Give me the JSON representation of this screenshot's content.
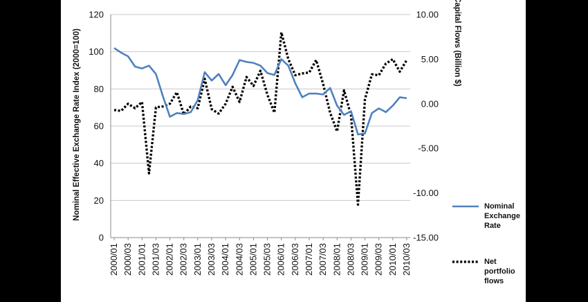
{
  "chart_data": {
    "type": "line",
    "title": "",
    "y_left_label": "Nominal Effective Exchange Rate Index  (2000=100)",
    "y_right_label": "Capital Flows (Billion $)",
    "y_left_lim": [
      0,
      120
    ],
    "y_left_ticks": [
      "0",
      "20",
      "40",
      "60",
      "80",
      "100",
      "120"
    ],
    "y_right_lim": [
      -15,
      10
    ],
    "y_right_ticks": [
      "-15.00",
      "-10.00",
      "-5.00",
      "0.00",
      "5.00",
      "10.00"
    ],
    "x_tick_labels": [
      "2000/01",
      "2000/03",
      "2001/01",
      "2001/03",
      "2002/01",
      "2002/03",
      "2003/01",
      "2003/03",
      "2004/01",
      "2004/03",
      "2005/01",
      "2005/03",
      "2006/01",
      "2006/03",
      "2007/01",
      "2007/03",
      "2008/01",
      "2008/03",
      "2009/01",
      "2009/03",
      "2010/01",
      "2010/03"
    ],
    "grid": "horizontal",
    "legend_position": "right",
    "series": [
      {
        "name": "Nominal\nExchange\nRate",
        "axis": "left",
        "color": "#4f81bd",
        "style": "solid",
        "x": [
          "2000/01",
          "2000/02",
          "2000/03",
          "2000/04",
          "2001/01",
          "2001/02",
          "2001/03",
          "2001/04",
          "2002/01",
          "2002/02",
          "2002/03",
          "2002/04",
          "2003/01",
          "2003/02",
          "2003/03",
          "2003/04",
          "2004/01",
          "2004/02",
          "2004/03",
          "2004/04",
          "2005/01",
          "2005/02",
          "2005/03",
          "2005/04",
          "2006/01",
          "2006/02",
          "2006/03",
          "2006/04",
          "2007/01",
          "2007/02",
          "2007/03",
          "2007/04",
          "2008/01",
          "2008/02",
          "2008/03",
          "2008/04",
          "2009/01",
          "2009/02",
          "2009/03",
          "2009/04",
          "2010/01",
          "2010/02",
          "2010/03"
        ],
        "values": [
          102,
          99.5,
          97.5,
          92,
          91,
          92.5,
          88,
          76,
          65,
          67,
          66.5,
          67.5,
          74,
          89,
          84.5,
          88,
          82,
          87.5,
          95.5,
          94.5,
          94,
          92.5,
          88.5,
          87.5,
          96,
          92.5,
          83,
          75.5,
          77.5,
          77.5,
          77,
          80.5,
          71,
          66,
          68,
          55.5,
          56,
          67,
          69.5,
          67.5,
          71,
          75.5,
          75
        ]
      },
      {
        "name": "Net\nportfolio\nflows",
        "axis": "right",
        "color": "#000000",
        "style": "dotted",
        "x": [
          "2000/01",
          "2000/02",
          "2000/03",
          "2000/04",
          "2001/01",
          "2001/02",
          "2001/03",
          "2001/04",
          "2002/01",
          "2002/02",
          "2002/03",
          "2002/04",
          "2003/01",
          "2003/02",
          "2003/03",
          "2003/04",
          "2004/01",
          "2004/02",
          "2004/03",
          "2004/04",
          "2005/01",
          "2005/02",
          "2005/03",
          "2005/04",
          "2006/01",
          "2006/02",
          "2006/03",
          "2006/04",
          "2007/01",
          "2007/02",
          "2007/03",
          "2007/04",
          "2008/01",
          "2008/02",
          "2008/03",
          "2008/04",
          "2009/01",
          "2009/02",
          "2009/03",
          "2009/04",
          "2010/01",
          "2010/02",
          "2010/03"
        ],
        "values": [
          -0.7,
          -0.8,
          0,
          -0.5,
          0.2,
          -7.8,
          -0.4,
          -0.3,
          0,
          1.3,
          -1.2,
          -0.3,
          -0.5,
          2.8,
          -0.6,
          -1.1,
          0,
          1.9,
          0.2,
          3,
          2,
          3.7,
          1,
          -1,
          8,
          5,
          3.2,
          3.4,
          3.5,
          4.9,
          2.2,
          -1,
          -3.1,
          1.5,
          -1.3,
          -11.3,
          0.5,
          3.3,
          3.2,
          4.5,
          5,
          3.6,
          4.9
        ]
      }
    ]
  }
}
